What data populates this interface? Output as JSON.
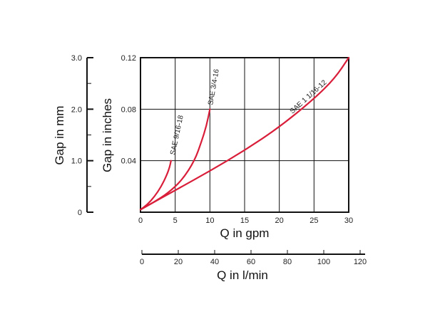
{
  "chart_data": {
    "type": "line",
    "x": {
      "label": "Q in gpm",
      "range": [
        0,
        30
      ],
      "ticks": [
        "0",
        "5",
        "10",
        "15",
        "20",
        "25",
        "30"
      ]
    },
    "x2": {
      "label": "Q in l/min",
      "range": [
        0,
        120
      ],
      "ticks": [
        "0",
        "20",
        "40",
        "60",
        "80",
        "100",
        "120"
      ]
    },
    "y": {
      "label": "Gap in inches",
      "range": [
        0,
        0.12
      ],
      "ticks": [
        "0.04",
        "0.08",
        "0.12"
      ]
    },
    "y2": {
      "label": "Gap in mm",
      "range": [
        0,
        3.0
      ],
      "ticks": [
        "0",
        "1.0",
        "2.0",
        "3.0"
      ]
    },
    "grid": true,
    "line_color": "#d91e3a",
    "series": [
      {
        "name": "SAE 9/16-18",
        "points": [
          [
            0,
            0.002
          ],
          [
            1,
            0.006
          ],
          [
            2,
            0.012
          ],
          [
            3,
            0.02
          ],
          [
            3.8,
            0.029
          ],
          [
            4.2,
            0.035
          ],
          [
            4.4,
            0.04
          ]
        ]
      },
      {
        "name": "SAE 3/4-16",
        "points": [
          [
            0,
            0.002
          ],
          [
            2,
            0.008
          ],
          [
            4,
            0.015
          ],
          [
            6,
            0.025
          ],
          [
            7.8,
            0.04
          ],
          [
            8.8,
            0.055
          ],
          [
            9.5,
            0.067
          ],
          [
            10,
            0.08
          ]
        ]
      },
      {
        "name": "SAE 1 1/16-12",
        "points": [
          [
            0,
            0.002
          ],
          [
            5,
            0.017
          ],
          [
            10,
            0.032
          ],
          [
            15,
            0.048
          ],
          [
            20,
            0.066
          ],
          [
            25,
            0.088
          ],
          [
            28,
            0.104
          ],
          [
            30,
            0.12
          ]
        ]
      }
    ]
  }
}
